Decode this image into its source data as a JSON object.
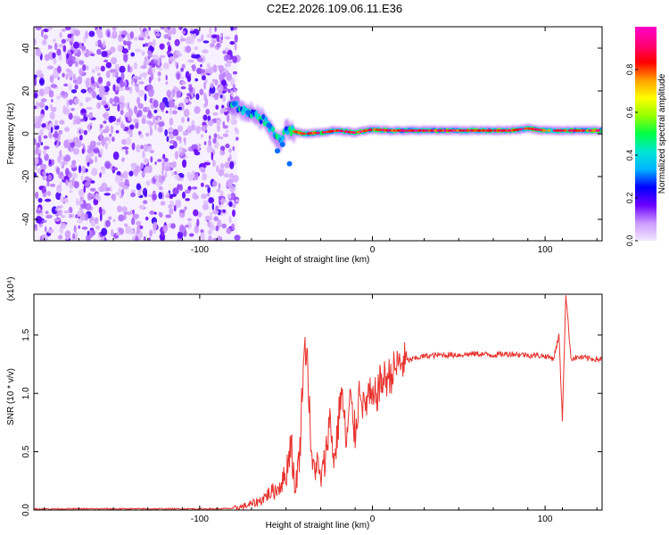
{
  "title": "C2E2.2026.109.06.11.E36",
  "chart_data": [
    {
      "type": "heatmap",
      "xlabel": "Height of straight line (km)",
      "ylabel": "Frequency (Hz)",
      "xlim": [
        -196,
        133
      ],
      "ylim": [
        -50,
        50
      ],
      "xticks": [
        -100,
        0,
        100
      ],
      "xtick_labels": [
        "-100",
        "0",
        "100"
      ],
      "yticks": [
        -40,
        -20,
        0,
        20,
        40
      ],
      "ytick_labels": [
        "-40",
        "-20",
        "0",
        "20",
        "40"
      ],
      "noise_region": {
        "x_start": -196,
        "x_end": -78,
        "freq_range": [
          -50,
          50
        ]
      },
      "signal_ridge": [
        {
          "x": -82,
          "freq": 14
        },
        {
          "x": -75,
          "freq": 11
        },
        {
          "x": -68,
          "freq": 9
        },
        {
          "x": -62,
          "freq": 6
        },
        {
          "x": -57,
          "freq": 0
        },
        {
          "x": -53,
          "freq": -4
        },
        {
          "x": -50,
          "freq": 2
        },
        {
          "x": -45,
          "freq": 1
        },
        {
          "x": -40,
          "freq": 0
        },
        {
          "x": -30,
          "freq": 0.5
        },
        {
          "x": -20,
          "freq": 1.5
        },
        {
          "x": -10,
          "freq": 0.5
        },
        {
          "x": 0,
          "freq": 2
        },
        {
          "x": 10,
          "freq": 1.5
        },
        {
          "x": 20,
          "freq": 1.5
        },
        {
          "x": 40,
          "freq": 1.5
        },
        {
          "x": 60,
          "freq": 1.5
        },
        {
          "x": 80,
          "freq": 1.5
        },
        {
          "x": 90,
          "freq": 2.5
        },
        {
          "x": 100,
          "freq": 1.5
        },
        {
          "x": 110,
          "freq": 1.5
        },
        {
          "x": 133,
          "freq": 1.5
        }
      ],
      "colorbar": {
        "label": "Normalized spectral amplitude",
        "range": [
          0,
          1
        ],
        "ticks": [
          0.0,
          0.2,
          0.4,
          0.6,
          0.8
        ],
        "tick_labels": [
          "0.0",
          "0.2",
          "0.4",
          "0.6",
          "0.8"
        ],
        "colors": [
          "#f2e8ff",
          "#cc99ff",
          "#6a00ff",
          "#0000ff",
          "#00b4ff",
          "#00e6d2",
          "#00ff46",
          "#96ff00",
          "#ffff00",
          "#ffa000",
          "#ff0000",
          "#ff0078",
          "#ff00c8"
        ]
      }
    },
    {
      "type": "line",
      "xlabel": "Height of straight line (km)",
      "ylabel": "SNR (10 * v/v)",
      "y_multiplier": "(x10⁴)",
      "xlim": [
        -196,
        133
      ],
      "ylim": [
        0,
        1.85
      ],
      "xticks": [
        -100,
        0,
        100
      ],
      "xtick_labels": [
        "-100",
        "0",
        "100"
      ],
      "yticks": [
        0.0,
        0.5,
        1.0,
        1.5
      ],
      "ytick_labels": [
        "0.0",
        "0.5",
        "1.0",
        "1.5"
      ],
      "series": [
        {
          "name": "SNR",
          "color": "#e8332e",
          "x": [
            -196,
            -90,
            -80,
            -75,
            -70,
            -65,
            -60,
            -55,
            -50,
            -47,
            -45,
            -42,
            -40,
            -38,
            -35,
            -32,
            -30,
            -27,
            -25,
            -22,
            -20,
            -18,
            -15,
            -13,
            -10,
            -7,
            -5,
            -2,
            0,
            5,
            10,
            15,
            20,
            25,
            30,
            40,
            50,
            60,
            70,
            80,
            90,
            100,
            105,
            108,
            110,
            112,
            115,
            120,
            125,
            133
          ],
          "y": [
            0.01,
            0.01,
            0.015,
            0.03,
            0.05,
            0.08,
            0.14,
            0.18,
            0.3,
            0.62,
            0.15,
            0.5,
            1.3,
            1.42,
            0.35,
            0.4,
            0.25,
            0.45,
            0.8,
            0.42,
            0.7,
            1.05,
            0.55,
            0.95,
            0.65,
            1.1,
            0.85,
            1.0,
            0.9,
            1.1,
            1.15,
            1.25,
            1.28,
            1.3,
            1.32,
            1.33,
            1.33,
            1.34,
            1.33,
            1.34,
            1.33,
            1.32,
            1.3,
            1.5,
            0.78,
            1.85,
            1.3,
            1.31,
            1.3,
            1.29
          ]
        }
      ]
    }
  ]
}
